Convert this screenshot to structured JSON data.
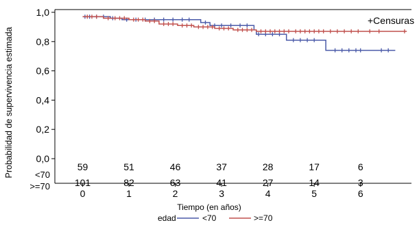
{
  "chart_data": {
    "type": "line",
    "step": true,
    "ylabel": "Probabilidad de supervivencia estimada",
    "xlabel": "Tiempo (en años)",
    "xlim": [
      -0.6,
      7.1
    ],
    "ylim": [
      0.0,
      1.0
    ],
    "y_ticks": [
      "0,0",
      "0,2",
      "0,4",
      "0,6",
      "0,8",
      "1,0"
    ],
    "y_tick_values": [
      0.0,
      0.2,
      0.4,
      0.6,
      0.8,
      1.0
    ],
    "x_ticks": [
      "0",
      "1",
      "2",
      "3",
      "4",
      "5",
      "6"
    ],
    "x_tick_values": [
      0,
      1,
      2,
      3,
      4,
      5,
      6
    ],
    "grid": false,
    "censor_label": "+Censuras",
    "legend": {
      "title": "edad",
      "placement": "bottom",
      "items": [
        "<70",
        ">=70"
      ]
    },
    "colors": {
      "<70": "#4a5aa8",
      ">=70": "#c0504d"
    },
    "series": [
      {
        "name": "<70",
        "color": "#4a5aa8",
        "steps": [
          [
            0,
            0.97
          ],
          [
            0.6,
            0.96
          ],
          [
            0.85,
            0.95
          ],
          [
            2.55,
            0.93
          ],
          [
            2.75,
            0.91
          ],
          [
            3.7,
            0.88
          ],
          [
            3.75,
            0.85
          ],
          [
            4.4,
            0.81
          ],
          [
            5.25,
            0.74
          ],
          [
            6.75,
            0.74
          ]
        ],
        "censors": [
          0.05,
          0.15,
          0.3,
          0.45,
          0.65,
          0.95,
          1.15,
          1.35,
          1.55,
          1.75,
          1.95,
          2.15,
          2.3,
          2.65,
          2.85,
          3.0,
          3.2,
          3.4,
          3.55,
          3.8,
          3.95,
          4.1,
          4.25,
          4.55,
          4.7,
          4.85,
          5.0,
          5.45,
          5.6,
          5.75,
          5.9,
          6.0,
          6.45,
          6.6
        ]
      },
      {
        "name": ">=70",
        "color": "#c0504d",
        "steps": [
          [
            0,
            0.97
          ],
          [
            0.45,
            0.96
          ],
          [
            1.0,
            0.95
          ],
          [
            1.35,
            0.94
          ],
          [
            1.65,
            0.92
          ],
          [
            2.05,
            0.91
          ],
          [
            2.4,
            0.9
          ],
          [
            2.85,
            0.89
          ],
          [
            3.25,
            0.88
          ],
          [
            3.75,
            0.87
          ],
          [
            7.0,
            0.87
          ]
        ],
        "censors": [
          0.1,
          0.2,
          0.3,
          0.55,
          0.7,
          0.8,
          0.9,
          1.1,
          1.2,
          1.3,
          1.45,
          1.55,
          1.75,
          1.85,
          1.95,
          2.15,
          2.25,
          2.35,
          2.5,
          2.6,
          2.7,
          2.8,
          2.95,
          3.05,
          3.15,
          3.35,
          3.45,
          3.55,
          3.65,
          3.85,
          3.95,
          4.05,
          4.15,
          4.25,
          4.35,
          4.45,
          4.6,
          4.7,
          4.8,
          4.9,
          5.0,
          5.1,
          5.2,
          5.35,
          5.5,
          5.65,
          5.8,
          5.95,
          6.2,
          6.4,
          6.95
        ]
      }
    ],
    "at_risk": {
      "times": [
        0,
        1,
        2,
        3,
        4,
        5,
        6
      ],
      "rows": [
        {
          "label": "<70",
          "counts": [
            "59",
            "51",
            "46",
            "37",
            "28",
            "17",
            "6"
          ]
        },
        {
          "label": ">=70",
          "counts": [
            "101",
            "82",
            "63",
            "41",
            "27",
            "14",
            "3"
          ]
        }
      ]
    }
  }
}
